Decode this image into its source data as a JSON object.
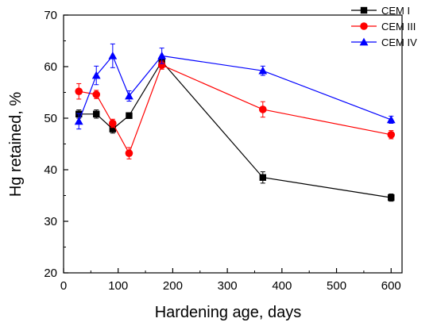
{
  "chart_data": {
    "type": "line",
    "title": "",
    "xlabel": "Hardening age, days",
    "ylabel": "Hg retained, %",
    "xlim": [
      0,
      620
    ],
    "ylim": [
      20,
      70
    ],
    "xticks": [
      0,
      100,
      200,
      300,
      400,
      500,
      600
    ],
    "yticks": [
      20,
      30,
      40,
      50,
      60,
      70
    ],
    "grid": false,
    "legend_position": "top-right",
    "x": [
      28,
      60,
      90,
      120,
      180,
      365,
      600
    ],
    "series": [
      {
        "name": "CEM I",
        "color": "#000000",
        "marker": "square",
        "values": [
          50.8,
          50.8,
          47.9,
          50.5,
          61.0,
          38.5,
          34.6
        ],
        "errors": [
          0.8,
          0.8,
          0.8,
          0.0,
          0.8,
          1.1,
          0.7
        ]
      },
      {
        "name": "CEM III",
        "color": "#ff0000",
        "marker": "circle",
        "values": [
          55.2,
          54.6,
          49.0,
          43.2,
          60.3,
          51.7,
          46.8
        ],
        "errors": [
          1.5,
          0.8,
          0.8,
          1.1,
          0.8,
          1.5,
          0.8
        ]
      },
      {
        "name": "CEM IV",
        "color": "#0000ff",
        "marker": "triangle",
        "values": [
          49.4,
          58.3,
          62.1,
          54.3,
          62.1,
          59.2,
          49.7
        ],
        "errors": [
          1.5,
          1.8,
          2.3,
          1.0,
          1.5,
          0.9,
          0.7
        ]
      }
    ]
  }
}
